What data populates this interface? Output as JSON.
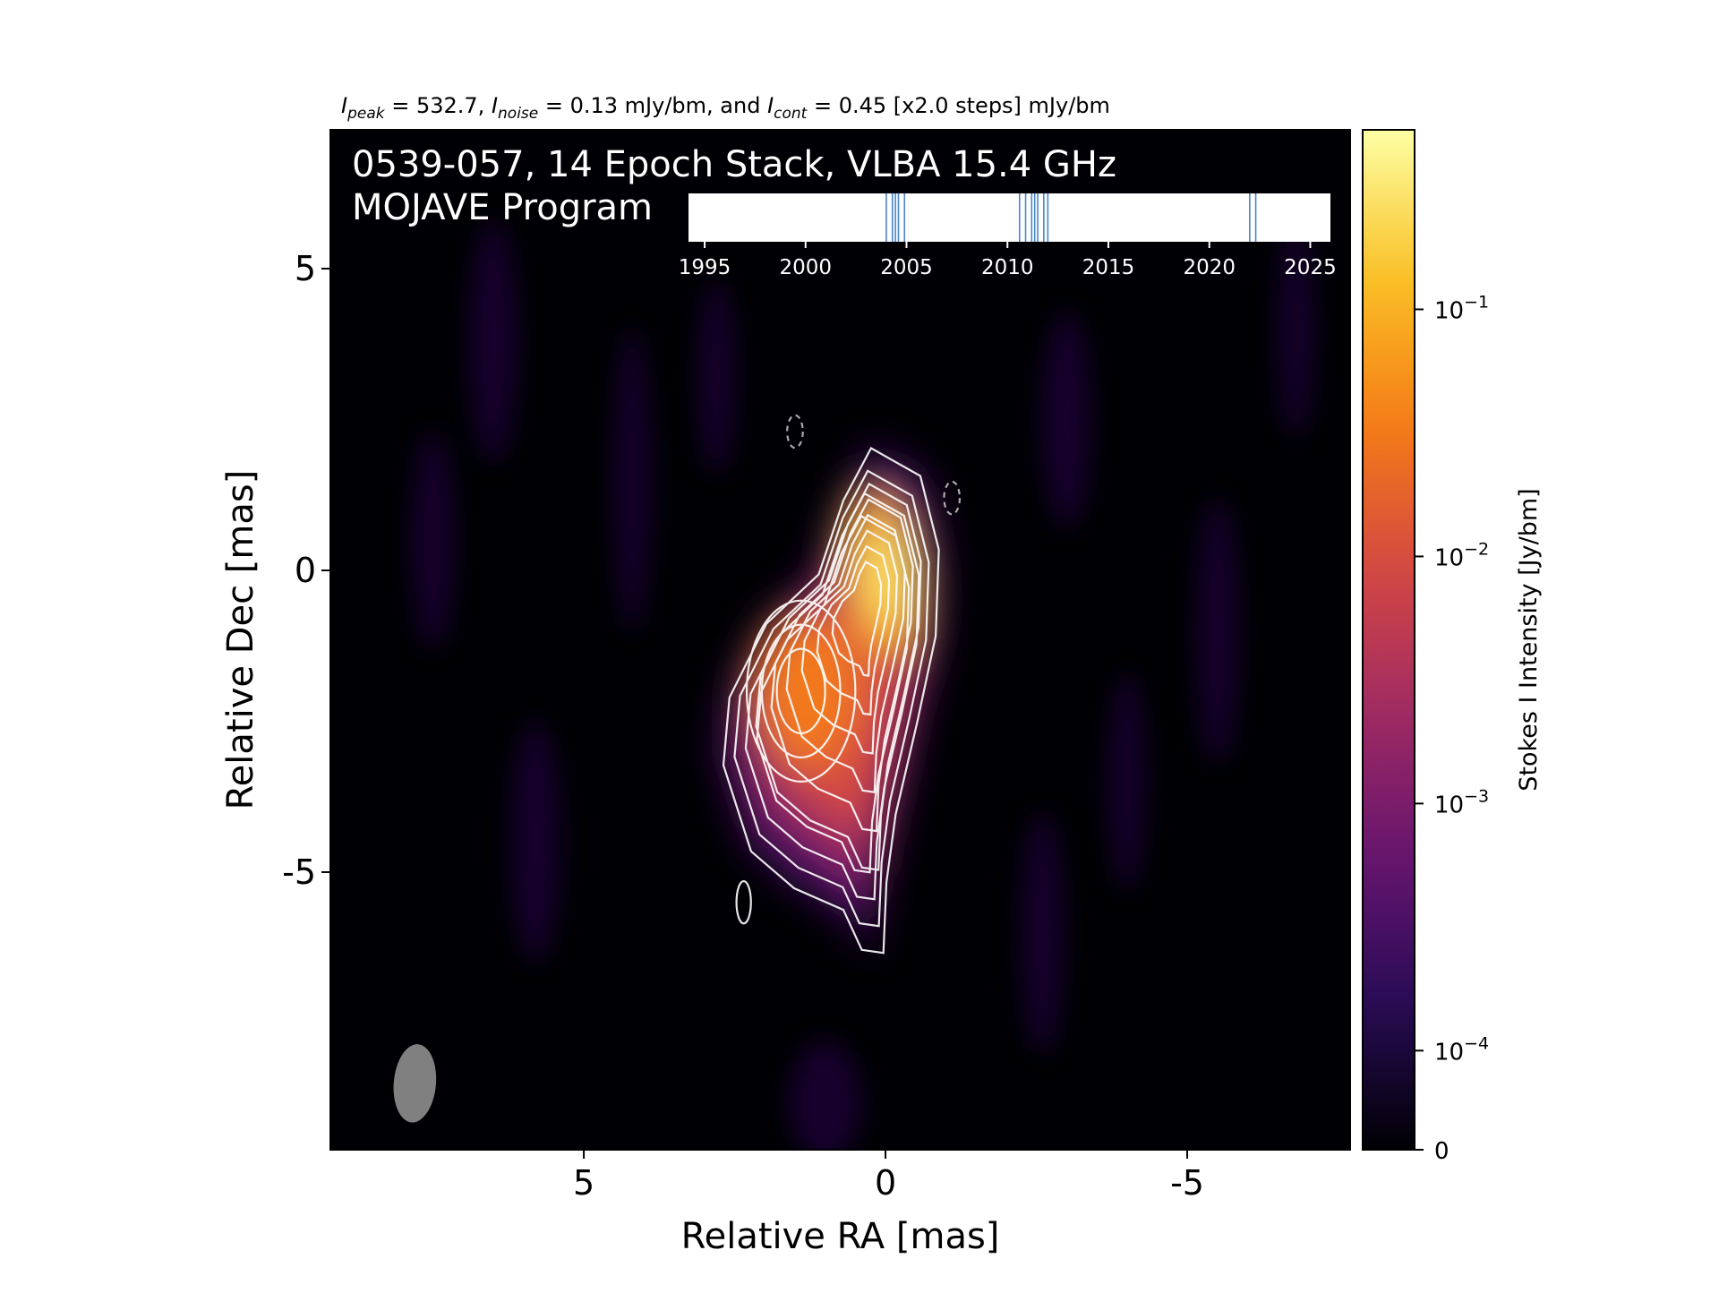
{
  "chart_data": {
    "type": "heatmap",
    "subtitle": {
      "parts": [
        {
          "text": "I",
          "style": "italic"
        },
        {
          "text": "peak",
          "style": "sub"
        },
        {
          "text": " = 532.7, ",
          "style": "normal"
        },
        {
          "text": "I",
          "style": "italic"
        },
        {
          "text": "noise",
          "style": "sub"
        },
        {
          "text": " = 0.13 mJy/bm, and ",
          "style": "normal"
        },
        {
          "text": "I",
          "style": "italic"
        },
        {
          "text": "cont",
          "style": "sub"
        },
        {
          "text": " = 0.45 [x2.0 steps] mJy/bm",
          "style": "normal"
        }
      ]
    },
    "title_line1": "0539-057, 14 Epoch Stack, VLBA 15.4 GHz",
    "title_line2": "MOJAVE Program",
    "xlabel": "Relative RA [mas]",
    "ylabel": "Relative Dec [mas]",
    "xlim": [
      9.2,
      -7.7
    ],
    "ylim": [
      -9.6,
      7.3
    ],
    "x_ticks": [
      5,
      0,
      -5
    ],
    "x_tick_labels": [
      "5",
      "0",
      "-5"
    ],
    "y_ticks": [
      5,
      0,
      -5
    ],
    "y_tick_labels": [
      "5",
      "0",
      "-5"
    ],
    "colorbar": {
      "label": "Stokes I Intensity [Jy/bm]",
      "scale": "log",
      "colormap": "inferno",
      "ticks": [
        {
          "value": 0.1,
          "label_base": "10",
          "label_exp": "−1"
        },
        {
          "value": 0.01,
          "label_base": "10",
          "label_exp": "−2"
        },
        {
          "value": 0.001,
          "label_base": "10",
          "label_exp": "−3"
        },
        {
          "value": 0.0001,
          "label_base": "10",
          "label_exp": "−4"
        },
        {
          "value": 0,
          "label_base": "0",
          "label_exp": ""
        }
      ],
      "range": [
        0,
        0.5327
      ]
    },
    "peak_jy": 0.5327,
    "peak_position": [
      0.0,
      -0.1
    ],
    "secondary_component_position": [
      1.3,
      -2.0
    ],
    "contour_base_mjy": 0.45,
    "contour_step_factor": 2.0,
    "contour_color": "#ffffff",
    "negative_contour_positions": [
      [
        1.5,
        2.3
      ],
      [
        -1.1,
        1.2
      ]
    ],
    "beam": {
      "center": [
        7.8,
        -8.5
      ],
      "major_mas": 1.3,
      "minor_mas": 0.5,
      "pa_deg": -5,
      "color": "#808080"
    },
    "epoch_timeline": {
      "tick_labels": [
        "1995",
        "2000",
        "2005",
        "2010",
        "2015",
        "2020",
        "2025"
      ],
      "tick_years": [
        1995,
        2000,
        2005,
        2010,
        2015,
        2020,
        2025
      ],
      "xlim": [
        1994.2,
        2026.0
      ],
      "epochs": [
        2004.0,
        2004.3,
        2004.6,
        2004.9,
        2010.6,
        2010.9,
        2011.2,
        2011.5,
        2011.8,
        2012.0,
        2022.0,
        2022.3,
        2004.45,
        2011.35
      ],
      "epoch_color": "#4a86c8"
    }
  }
}
